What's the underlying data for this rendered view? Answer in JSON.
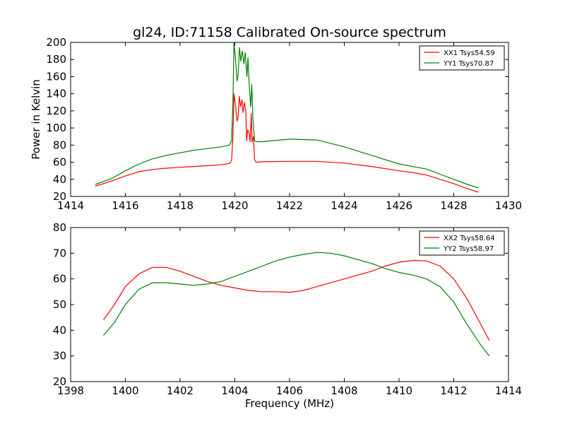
{
  "figure": {
    "title": "gl24, ID:71158 Calibrated On-source spectrum",
    "ylabel": "Power in Kelvin",
    "xlabel": "Frequency (MHz)"
  },
  "chart_data": [
    {
      "type": "line",
      "title": "gl24, ID:71158 Calibrated On-source spectrum",
      "xlabel": "",
      "ylabel": "Power in Kelvin",
      "xlim": [
        1414,
        1430
      ],
      "ylim": [
        20,
        200
      ],
      "xticks": [
        1414,
        1416,
        1418,
        1420,
        1422,
        1424,
        1426,
        1428,
        1430
      ],
      "yticks": [
        20,
        40,
        60,
        80,
        100,
        120,
        140,
        160,
        180,
        200
      ],
      "grid": false,
      "legend_position": "top-right",
      "series": [
        {
          "name": "XX1 Tsys54.59",
          "color": "#ff0000",
          "points": [
            [
              1414.9,
              32
            ],
            [
              1415.5,
              38
            ],
            [
              1416,
              44
            ],
            [
              1416.5,
              49
            ],
            [
              1417,
              51.5
            ],
            [
              1417.5,
              53
            ],
            [
              1418,
              54
            ],
            [
              1418.5,
              55
            ],
            [
              1419,
              56
            ],
            [
              1419.5,
              57
            ],
            [
              1419.8,
              58.5
            ],
            [
              1419.88,
              62
            ],
            [
              1419.93,
              90
            ],
            [
              1419.97,
              140
            ],
            [
              1420.03,
              125
            ],
            [
              1420.08,
              108
            ],
            [
              1420.12,
              112
            ],
            [
              1420.16,
              137
            ],
            [
              1420.21,
              125
            ],
            [
              1420.26,
              133
            ],
            [
              1420.3,
              118
            ],
            [
              1420.35,
              130
            ],
            [
              1420.4,
              120
            ],
            [
              1420.43,
              85
            ],
            [
              1420.47,
              98
            ],
            [
              1420.52,
              95
            ],
            [
              1420.56,
              84
            ],
            [
              1420.6,
              117
            ],
            [
              1420.63,
              84
            ],
            [
              1420.68,
              90
            ],
            [
              1420.72,
              63
            ],
            [
              1420.78,
              60
            ],
            [
              1421,
              60.5
            ],
            [
              1422,
              61
            ],
            [
              1423,
              61
            ],
            [
              1424,
              59
            ],
            [
              1425,
              55
            ],
            [
              1426,
              50
            ],
            [
              1426.5,
              48
            ],
            [
              1427,
              45
            ],
            [
              1427.5,
              40
            ],
            [
              1428,
              35
            ],
            [
              1428.5,
              29
            ],
            [
              1428.9,
              25
            ]
          ]
        },
        {
          "name": "YY1 Tsys70.87",
          "color": "#008000",
          "points": [
            [
              1414.9,
              34
            ],
            [
              1415.5,
              41
            ],
            [
              1416,
              50
            ],
            [
              1416.5,
              58
            ],
            [
              1417,
              64
            ],
            [
              1417.5,
              68
            ],
            [
              1418,
              71
            ],
            [
              1418.5,
              74
            ],
            [
              1419,
              76
            ],
            [
              1419.5,
              78
            ],
            [
              1419.8,
              80
            ],
            [
              1419.88,
              85
            ],
            [
              1419.93,
              130
            ],
            [
              1419.97,
              200
            ],
            [
              1420.03,
              178
            ],
            [
              1420.08,
              155
            ],
            [
              1420.12,
              162
            ],
            [
              1420.17,
              194
            ],
            [
              1420.22,
              178
            ],
            [
              1420.27,
              190
            ],
            [
              1420.33,
              175
            ],
            [
              1420.38,
              188
            ],
            [
              1420.42,
              170
            ],
            [
              1420.44,
              160
            ],
            [
              1420.48,
              182
            ],
            [
              1420.53,
              148
            ],
            [
              1420.58,
              125
            ],
            [
              1420.62,
              151
            ],
            [
              1420.66,
              110
            ],
            [
              1420.72,
              85
            ],
            [
              1420.8,
              84
            ],
            [
              1421,
              84
            ],
            [
              1422,
              87
            ],
            [
              1423,
              86
            ],
            [
              1424,
              78
            ],
            [
              1425,
              68
            ],
            [
              1426,
              58
            ],
            [
              1427,
              52
            ],
            [
              1427.5,
              46
            ],
            [
              1428,
              40
            ],
            [
              1428.5,
              34
            ],
            [
              1428.9,
              30
            ]
          ]
        }
      ]
    },
    {
      "type": "line",
      "title": "",
      "xlabel": "Frequency (MHz)",
      "ylabel": "",
      "xlim": [
        1398,
        1414
      ],
      "ylim": [
        20,
        80
      ],
      "xticks": [
        1398,
        1400,
        1402,
        1404,
        1406,
        1408,
        1410,
        1412,
        1414
      ],
      "yticks": [
        20,
        30,
        40,
        50,
        60,
        70,
        80
      ],
      "grid": false,
      "legend_position": "top-right",
      "series": [
        {
          "name": "XX2 Tsys58.64",
          "color": "#ff0000",
          "points": [
            [
              1399.2,
              44
            ],
            [
              1399.6,
              50
            ],
            [
              1400,
              57
            ],
            [
              1400.5,
              62
            ],
            [
              1401,
              64.5
            ],
            [
              1401.5,
              64.5
            ],
            [
              1402,
              63
            ],
            [
              1402.5,
              61
            ],
            [
              1403,
              59
            ],
            [
              1403.5,
              57.5
            ],
            [
              1404,
              56.5
            ],
            [
              1404.5,
              55.5
            ],
            [
              1405,
              55
            ],
            [
              1405.5,
              55
            ],
            [
              1406,
              54.8
            ],
            [
              1406.5,
              55.5
            ],
            [
              1407,
              57
            ],
            [
              1407.5,
              58.5
            ],
            [
              1408,
              60
            ],
            [
              1408.5,
              61.5
            ],
            [
              1409,
              63
            ],
            [
              1409.5,
              65
            ],
            [
              1410,
              66.5
            ],
            [
              1410.5,
              67.2
            ],
            [
              1411,
              67
            ],
            [
              1411.5,
              65
            ],
            [
              1412,
              60
            ],
            [
              1412.5,
              52
            ],
            [
              1413,
              42
            ],
            [
              1413.3,
              36
            ]
          ]
        },
        {
          "name": "YY2 Tsys58.97",
          "color": "#008000",
          "points": [
            [
              1399.2,
              38
            ],
            [
              1399.6,
              43
            ],
            [
              1400,
              50
            ],
            [
              1400.5,
              56
            ],
            [
              1401,
              58.5
            ],
            [
              1401.5,
              58.5
            ],
            [
              1402,
              58
            ],
            [
              1402.5,
              57.5
            ],
            [
              1403,
              58
            ],
            [
              1403.5,
              59
            ],
            [
              1404,
              61
            ],
            [
              1404.5,
              63
            ],
            [
              1405,
              65
            ],
            [
              1405.5,
              67
            ],
            [
              1406,
              68.5
            ],
            [
              1406.5,
              69.5
            ],
            [
              1407,
              70.3
            ],
            [
              1407.5,
              70
            ],
            [
              1408,
              69
            ],
            [
              1408.5,
              67.5
            ],
            [
              1409,
              66
            ],
            [
              1409.5,
              64
            ],
            [
              1410,
              62.5
            ],
            [
              1410.5,
              61.5
            ],
            [
              1411,
              60
            ],
            [
              1411.5,
              57
            ],
            [
              1412,
              51
            ],
            [
              1412.5,
              42
            ],
            [
              1413,
              34
            ],
            [
              1413.3,
              30
            ]
          ]
        }
      ]
    }
  ]
}
